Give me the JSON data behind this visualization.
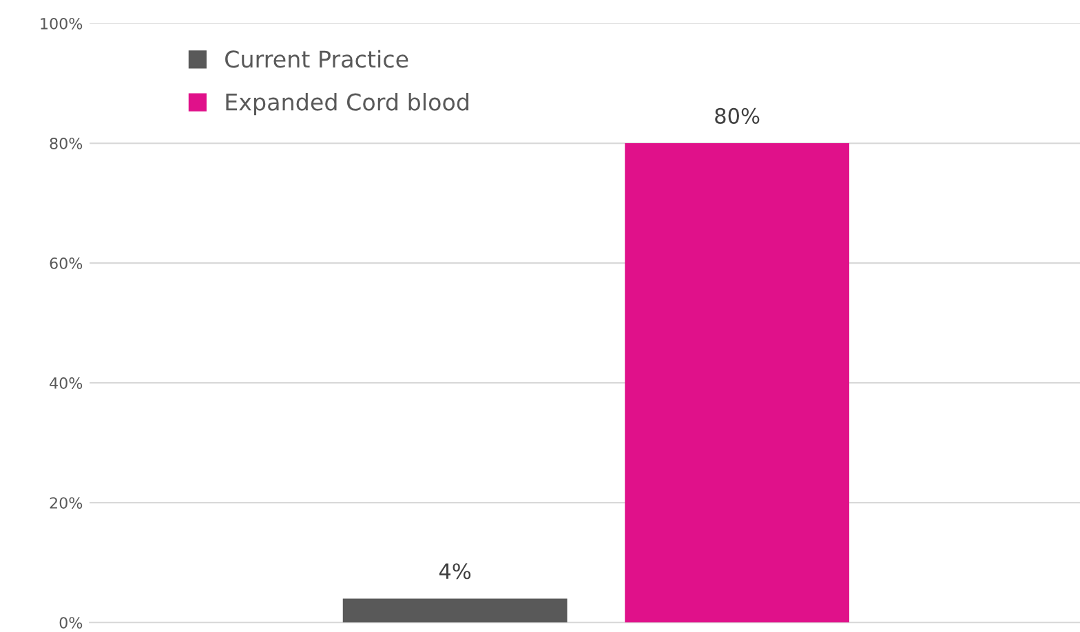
{
  "chart_data": {
    "type": "bar",
    "categories": [
      null
    ],
    "series": [
      {
        "name": "Current Practice",
        "color": "#595959",
        "values": [
          4
        ],
        "value_labels": [
          "4%"
        ]
      },
      {
        "name": "Expanded Cord blood",
        "color": "#e0118a",
        "values": [
          80
        ],
        "value_labels": [
          "80%"
        ]
      }
    ],
    "ylim": [
      0,
      100
    ],
    "yticks": [
      {
        "value": 0,
        "label": "0%"
      },
      {
        "value": 20,
        "label": "20%"
      },
      {
        "value": 40,
        "label": "40%"
      },
      {
        "value": 60,
        "label": "60%"
      },
      {
        "value": 80,
        "label": "80%"
      },
      {
        "value": 100,
        "label": "100%"
      }
    ],
    "grid": "y",
    "legend": "top left"
  }
}
